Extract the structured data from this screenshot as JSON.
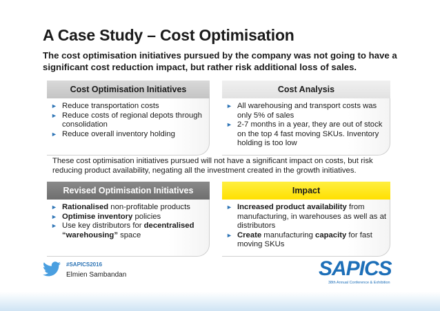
{
  "title": "A Case Study – Cost Optimisation",
  "subtitle": "The cost optimisation initiatives pursued by the company was not going to have a significant cost reduction impact, but rather risk additional loss of sales.",
  "panels": {
    "cost_initiatives": {
      "header": "Cost Optimisation Initiatives",
      "items": [
        [
          {
            "t": "Reduce transportation costs",
            "b": false
          }
        ],
        [
          {
            "t": "Reduce costs of regional depots through consolidation",
            "b": false
          }
        ],
        [
          {
            "t": "Reduce overall inventory holding",
            "b": false
          }
        ]
      ]
    },
    "cost_analysis": {
      "header": "Cost Analysis",
      "items": [
        [
          {
            "t": "All warehousing and transport costs was only 5% of sales",
            "b": false
          }
        ],
        [
          {
            "t": "2-7 months in a year, they are out of stock on the top 4 fast moving SKUs. Inventory holding is too low",
            "b": false
          }
        ]
      ]
    },
    "revised_initiatives": {
      "header": "Revised Optimisation Initiatives",
      "items": [
        [
          {
            "t": "Rationalised",
            "b": true
          },
          {
            "t": " non-profitable products",
            "b": false
          }
        ],
        [
          {
            "t": "Optimise inventory",
            "b": true
          },
          {
            "t": " policies",
            "b": false
          }
        ],
        [
          {
            "t": "Use key distributors for ",
            "b": false
          },
          {
            "t": "decentralised “warehousing”",
            "b": true
          },
          {
            "t": " space",
            "b": false
          }
        ]
      ]
    },
    "impact": {
      "header": "Impact",
      "items": [
        [
          {
            "t": "Increased product availability",
            "b": true
          },
          {
            "t": " from manufacturing, in warehouses as well as at distributors",
            "b": false
          }
        ],
        [
          {
            "t": "Create",
            "b": true
          },
          {
            "t": " manufacturing ",
            "b": false
          },
          {
            "t": "capacity",
            "b": true
          },
          {
            "t": " for fast moving SKUs",
            "b": false
          }
        ]
      ]
    }
  },
  "middle_text": "These cost optimisation initiatives pursued will not have a significant impact on costs, but risk reducing product availability, negating all the investment created in the growth initiatives.",
  "footer": {
    "hashtag": "#SAPICS2016",
    "author": "Elmien Sambandan",
    "logo_text": "SAPICS",
    "logo_tagline": "38th Annual Conference & Exhibition"
  },
  "colors": {
    "bullet": "#2e75b6",
    "impact_header": "#ffe000",
    "revised_header": "#7a7a7a",
    "logo": "#1d6fb8"
  },
  "icons": {
    "bullet": "triangle-right-icon",
    "social": "twitter-bird-icon"
  }
}
